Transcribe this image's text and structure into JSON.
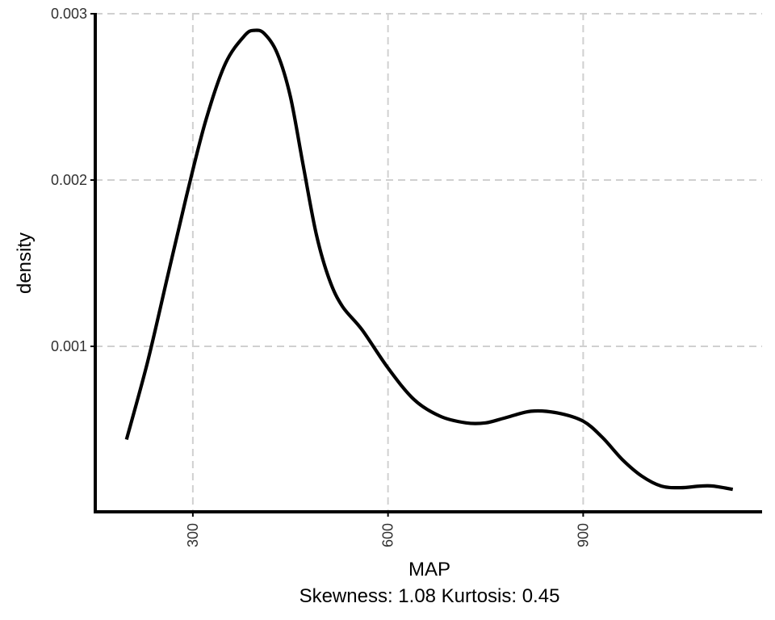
{
  "chart_data": {
    "type": "line",
    "title": "",
    "xlabel": "MAP",
    "ylabel": "density",
    "caption": "Skewness: 1.08 Kurtosis: 0.45",
    "xlim": [
      150,
      1175
    ],
    "ylim": [
      5e-06,
      0.003005
    ],
    "x_ticks": [
      300,
      600,
      900
    ],
    "x_tick_labels": [
      "300",
      "600",
      "900"
    ],
    "y_ticks": [
      0.001,
      0.002,
      0.003
    ],
    "y_tick_labels": [
      "0.001",
      "0.002",
      "0.003"
    ],
    "grid": true,
    "grid_style": "dashed",
    "legend": "none",
    "series": [
      {
        "color": "#000000",
        "x": [
          198,
          230,
          260,
          290,
          320,
          350,
          380,
          395,
          410,
          430,
          450,
          470,
          490,
          510,
          530,
          560,
          600,
          640,
          680,
          720,
          750,
          780,
          820,
          860,
          900,
          930,
          960,
          990,
          1020,
          1050,
          1080,
          1100,
          1130
        ],
        "y": [
          0.00044,
          0.0009,
          0.0014,
          0.0019,
          0.00236,
          0.0027,
          0.00287,
          0.0029,
          0.00288,
          0.00276,
          0.0025,
          0.00208,
          0.00167,
          0.0014,
          0.00124,
          0.0011,
          0.00087,
          0.00068,
          0.00058,
          0.00054,
          0.00054,
          0.00057,
          0.00061,
          0.0006,
          0.00055,
          0.00045,
          0.00032,
          0.00022,
          0.00016,
          0.00015,
          0.00016,
          0.00016,
          0.00014
        ]
      }
    ]
  }
}
